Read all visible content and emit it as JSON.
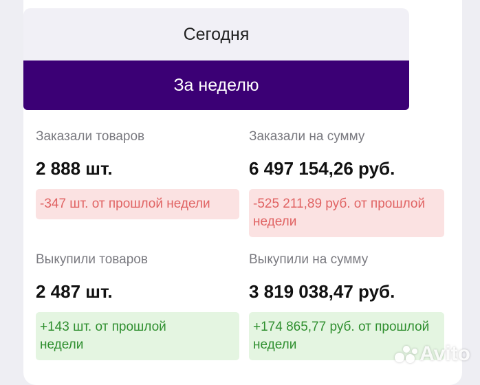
{
  "tabs": {
    "today": "Сегодня",
    "week": "За неделю"
  },
  "metrics": {
    "ordered_items": {
      "label": "Заказали товаров",
      "value": "2 888 шт.",
      "change": "-347 шт. от прошлой недели",
      "trend": "negative"
    },
    "ordered_sum": {
      "label": "Заказали на сумму",
      "value": "6 497 154,26 руб.",
      "change": "-525 211,89 руб. от прошлой недели",
      "trend": "negative"
    },
    "bought_items": {
      "label": "Выкупили товаров",
      "value": "2 487 шт.",
      "change": "+143 шт. от прошлой недели",
      "trend": "positive"
    },
    "bought_sum": {
      "label": "Выкупили на сумму",
      "value": "3 819 038,47 руб.",
      "change": "+174 865,77 руб. от прошлой недели",
      "trend": "positive"
    }
  },
  "watermark": {
    "text": "Avito"
  },
  "colors": {
    "accent": "#3b0075",
    "negative_bg": "#fbe2e2",
    "negative_text": "#e06363",
    "positive_bg": "#e4f5e1",
    "positive_text": "#2f8f2f"
  }
}
